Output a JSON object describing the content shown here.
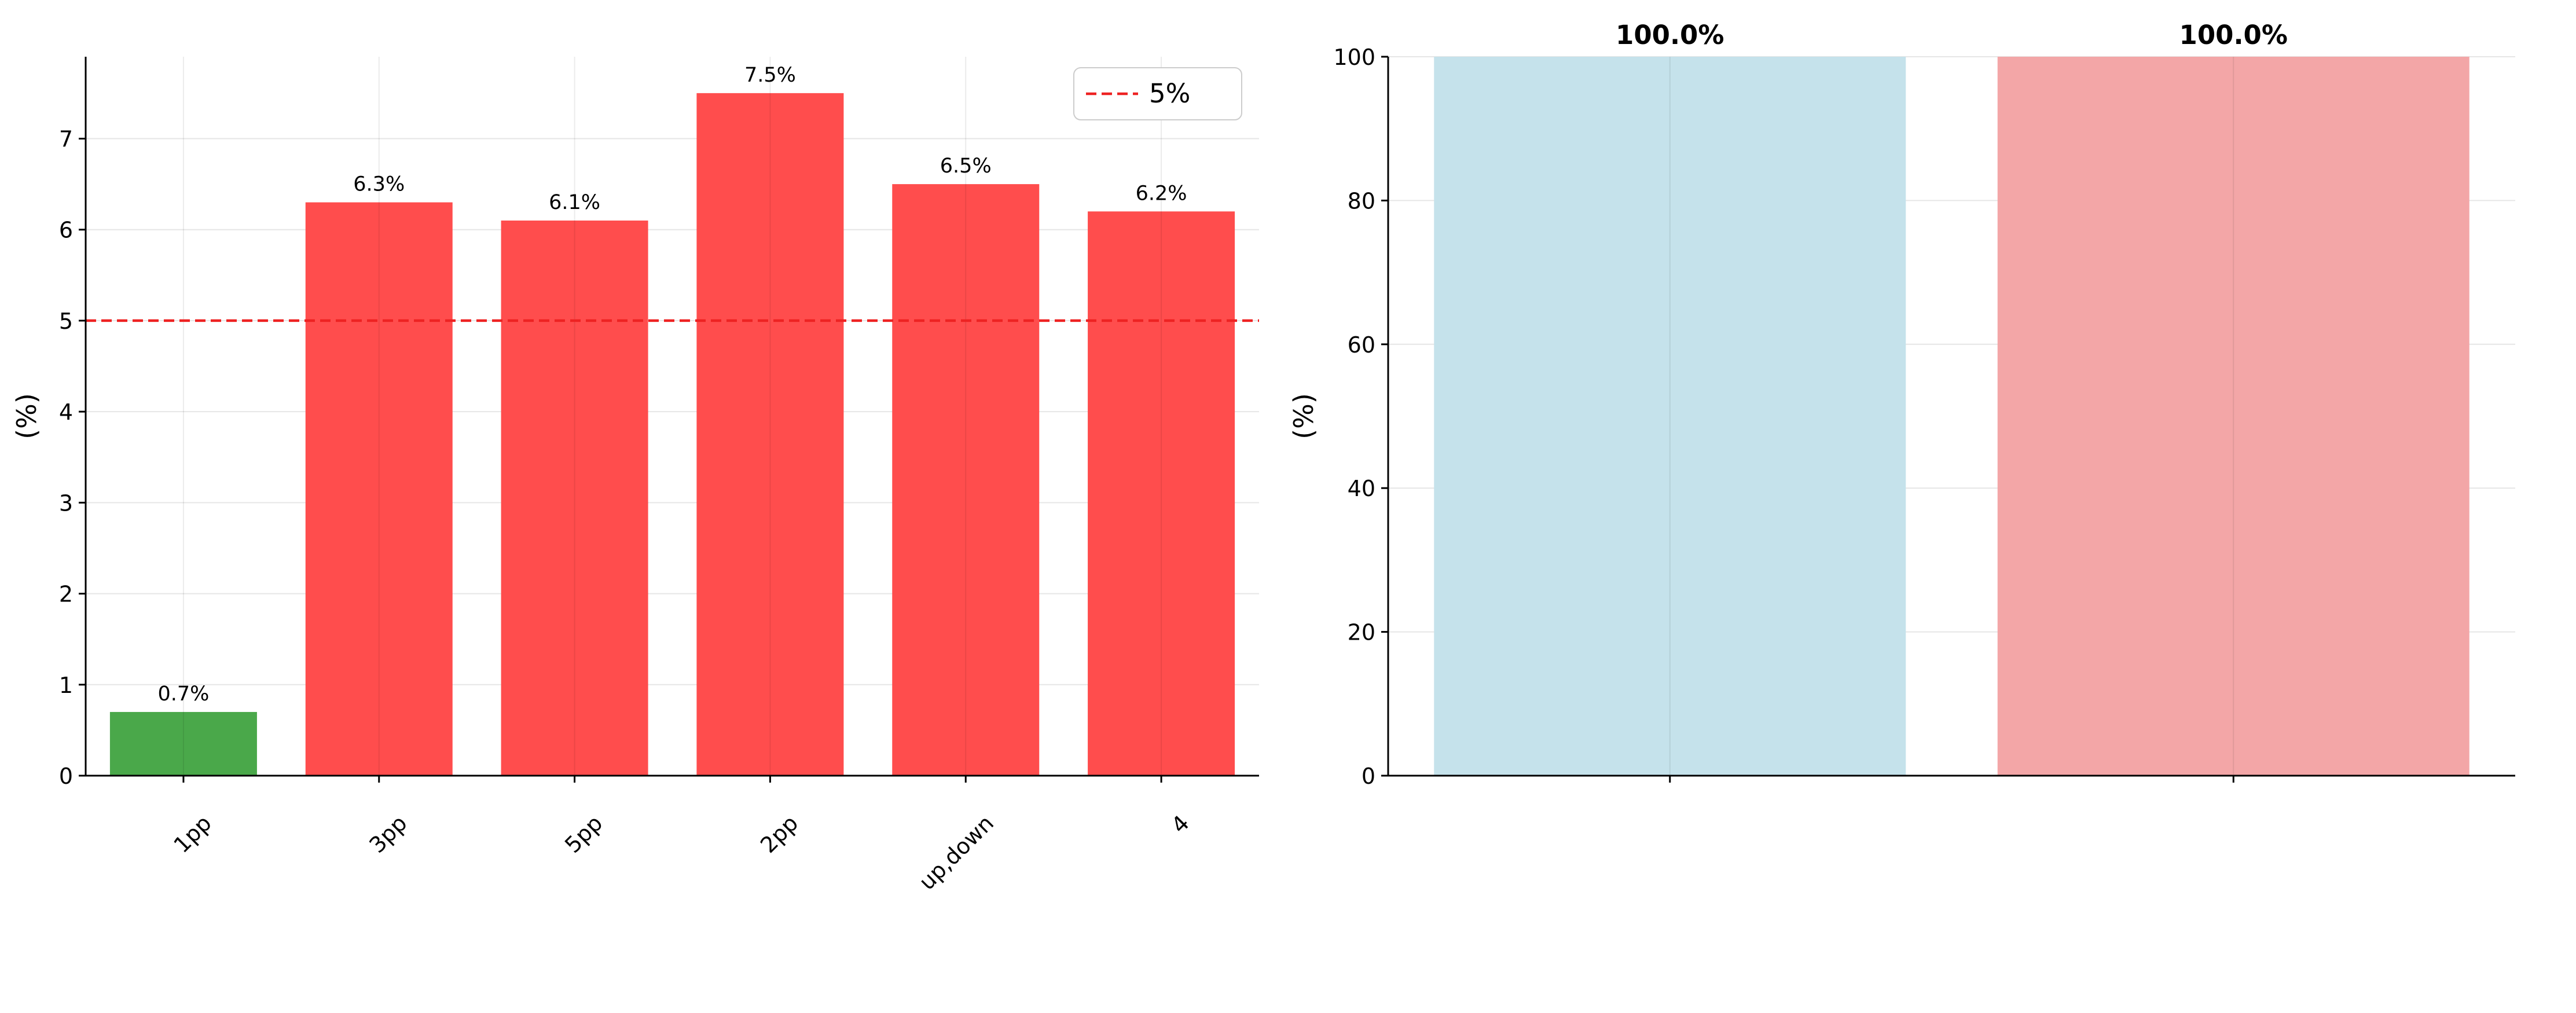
{
  "chart_data": [
    {
      "type": "bar",
      "title": "",
      "xlabel": "",
      "ylabel": " (%)",
      "categories": [
        [
          "",
          "1pp"
        ],
        [
          "",
          "3pp"
        ],
        [
          "",
          "5pp"
        ],
        [
          "",
          "2pp"
        ],
        [
          "",
          "up,down"
        ],
        [
          "",
          "4"
        ]
      ],
      "values": [
        0.7,
        6.3,
        6.1,
        7.5,
        6.5,
        6.2
      ],
      "value_labels": [
        "0.7%",
        "6.3%",
        "6.1%",
        "7.5%",
        "6.5%",
        "6.2%"
      ],
      "bar_colors": [
        "#4aa84a",
        "#ff4d4d",
        "#ff4d4d",
        "#ff4d4d",
        "#ff4d4d",
        "#ff4d4d"
      ],
      "ylim": [
        0,
        7.9
      ],
      "yticks": [
        0,
        1,
        2,
        3,
        4,
        5,
        6,
        7
      ],
      "reference_line": {
        "value": 5,
        "label": "5%",
        "color": "#ee2222"
      },
      "legend_position": "top-right",
      "grid": true
    },
    {
      "type": "bar",
      "title": "",
      "xlabel": "",
      "ylabel": " (%)",
      "categories": [
        "",
        ""
      ],
      "values": [
        100,
        100
      ],
      "value_labels": [
        "100.0%",
        "100.0%"
      ],
      "bar_colors": [
        "#c5e2eb",
        "#f3a6a7"
      ],
      "ylim": [
        0,
        100
      ],
      "yticks": [
        0,
        20,
        40,
        60,
        80,
        100
      ],
      "grid": true
    }
  ]
}
